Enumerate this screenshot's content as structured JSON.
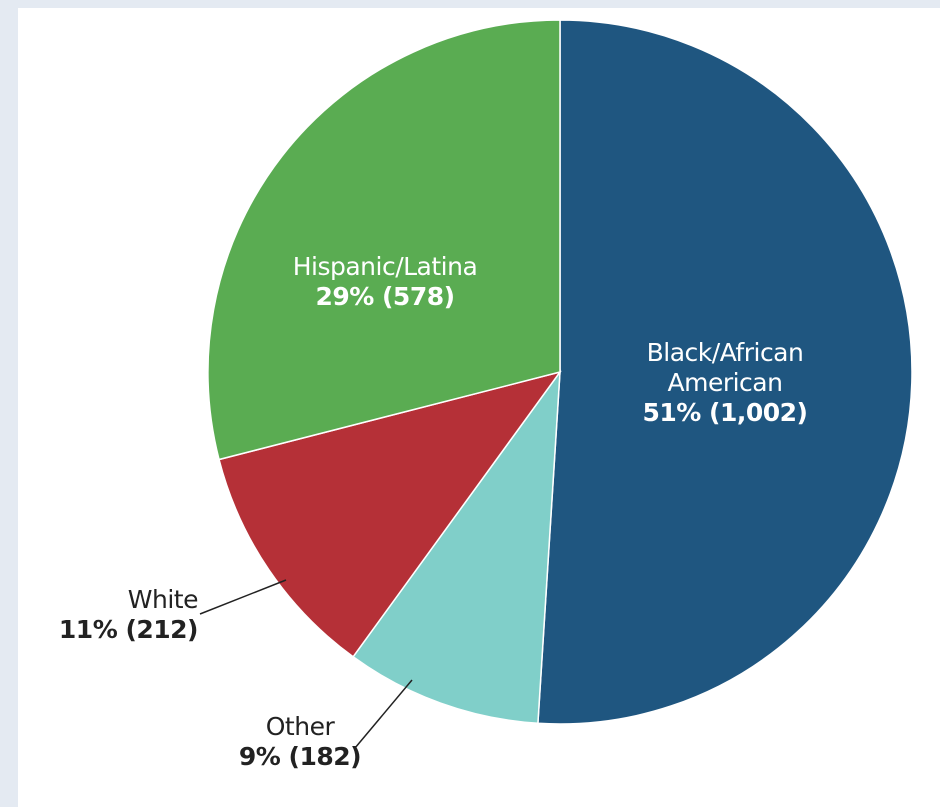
{
  "chart_data": {
    "type": "pie",
    "categories": [
      "Black/African American",
      "Other",
      "White",
      "Hispanic/Latina"
    ],
    "values": [
      51,
      9,
      11,
      29
    ],
    "value_labels": [
      "51% (1,002)",
      "9% (182)",
      "11% (212)",
      "29% (578)"
    ],
    "colors": [
      "#1f5680",
      "#80cfc9",
      "#b53037",
      "#5aac52"
    ]
  }
}
